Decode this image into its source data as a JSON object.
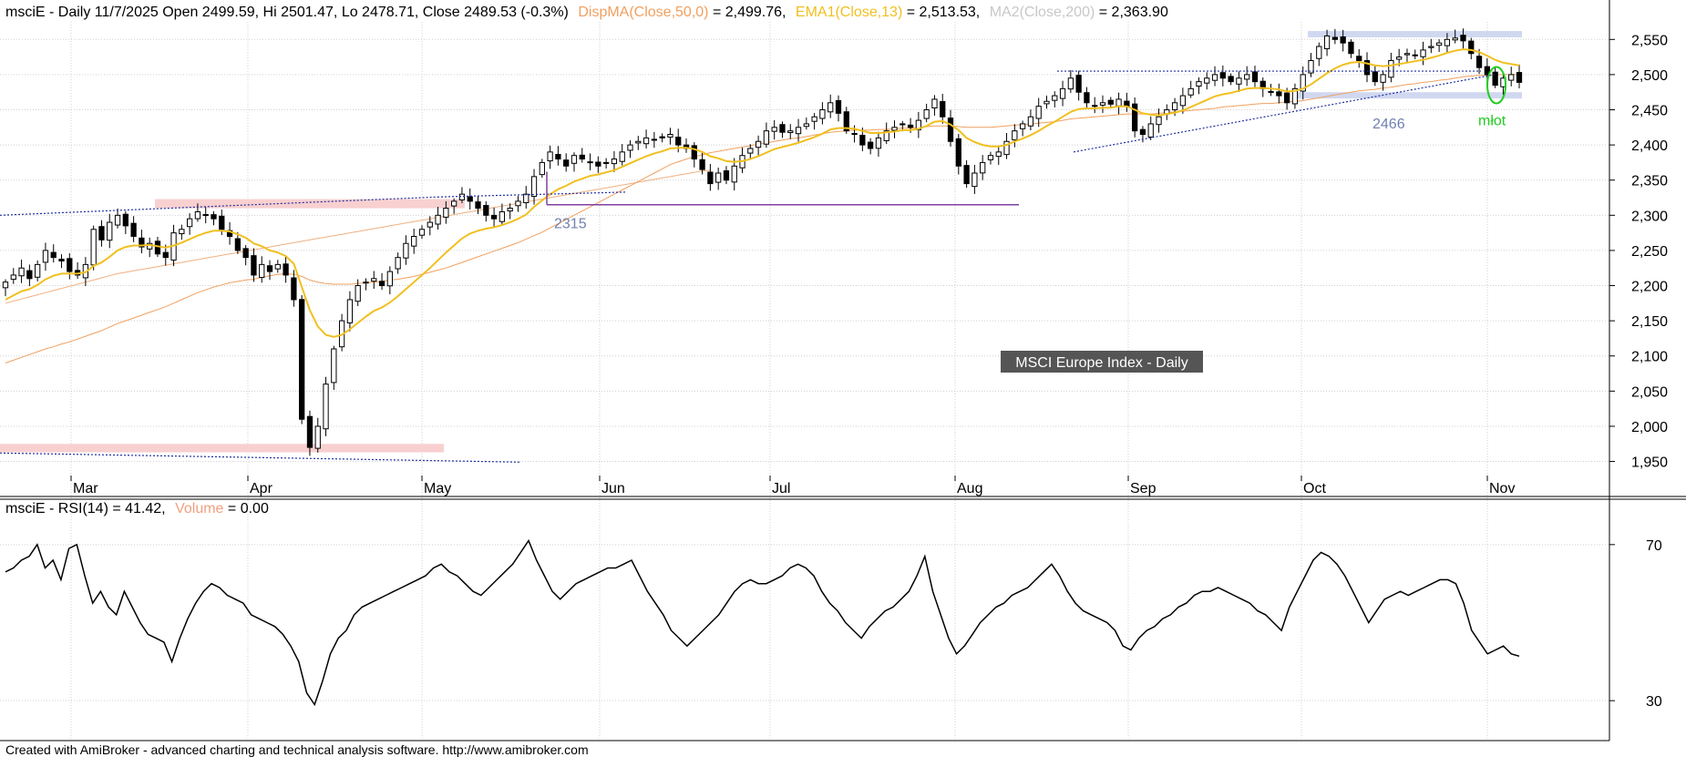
{
  "header": {
    "symbol": "msciE",
    "main": "msciE - Daily 11/7/2025 Open 2499.59, Hi 2501.47, Lo 2478.71, Close 2489.53 (-0.3%)",
    "ma50_label": "DispMA(Close,50,0)",
    "ma50_value": " = 2,499.76,",
    "ema13_label": "EMA1(Close,13)",
    "ema13_value": " = 2,513.53,",
    "ma200_label": "MA2(Close,200)",
    "ma200_value": " = 2,363.90"
  },
  "rsi_header": {
    "main": "msciE - RSI(14) = 41.42,",
    "volume_label": "Volume",
    "volume_value": " = 0.00"
  },
  "footer": "Created with AmiBroker - advanced charting and technical analysis software. http://www.amibroker.com",
  "colors": {
    "ema13": "#f0c020",
    "ma50": "#f0a060",
    "ma200": "#c8c8c8",
    "grid": "#d0d0d0",
    "annotation_blue": "#7080b0",
    "annotation_green": "#22cc22",
    "support_band": "#f8d0d0",
    "resistance_band": "#d0d8f0",
    "purple_line": "#8040a0"
  },
  "chart_data": [
    {
      "type": "candlestick",
      "title": "MSCI Europe Index - Daily",
      "ylim": [
        1930,
        2575
      ],
      "y_ticks": [
        "2,550",
        "2,500",
        "2,450",
        "2,400",
        "2,350",
        "2,300",
        "2,250",
        "2,200",
        "2,150",
        "2,100",
        "2,050",
        "2,000",
        "1,950"
      ],
      "months": [
        "Mar",
        "Apr",
        "May",
        "Jun",
        "Jul",
        "Aug",
        "Sep",
        "Oct",
        "Nov"
      ],
      "annotations": [
        {
          "text": "2315",
          "value": 2315
        },
        {
          "text": "2466",
          "value": 2466
        },
        {
          "text": "młot"
        }
      ],
      "close": [
        2205,
        2215,
        2225,
        2210,
        2230,
        2250,
        2240,
        2235,
        2220,
        2215,
        2230,
        2280,
        2265,
        2290,
        2300,
        2285,
        2270,
        2255,
        2260,
        2245,
        2240,
        2275,
        2280,
        2295,
        2305,
        2300,
        2295,
        2280,
        2270,
        2250,
        2240,
        2215,
        2230,
        2220,
        2230,
        2215,
        2180,
        2010,
        1970,
        2000,
        2060,
        2110,
        2150,
        2180,
        2200,
        2205,
        2210,
        2200,
        2220,
        2240,
        2260,
        2270,
        2280,
        2290,
        2300,
        2310,
        2320,
        2330,
        2320,
        2310,
        2300,
        2295,
        2305,
        2310,
        2320,
        2330,
        2355,
        2375,
        2390,
        2380,
        2370,
        2385,
        2380,
        2375,
        2370,
        2375,
        2380,
        2390,
        2400,
        2405,
        2410,
        2408,
        2410,
        2415,
        2400,
        2395,
        2380,
        2365,
        2345,
        2360,
        2350,
        2370,
        2385,
        2395,
        2405,
        2420,
        2425,
        2418,
        2420,
        2425,
        2430,
        2440,
        2450,
        2460,
        2445,
        2420,
        2415,
        2400,
        2395,
        2410,
        2420,
        2425,
        2430,
        2425,
        2435,
        2450,
        2465,
        2440,
        2405,
        2370,
        2345,
        2360,
        2375,
        2385,
        2390,
        2405,
        2420,
        2430,
        2440,
        2455,
        2462,
        2470,
        2480,
        2495,
        2475,
        2460,
        2455,
        2460,
        2458,
        2465,
        2455,
        2420,
        2415,
        2430,
        2440,
        2450,
        2460,
        2470,
        2480,
        2490,
        2495,
        2500,
        2495,
        2490,
        2495,
        2500,
        2490,
        2480,
        2475,
        2470,
        2460,
        2480,
        2500,
        2520,
        2540,
        2555,
        2550,
        2545,
        2530,
        2520,
        2500,
        2490,
        2500,
        2520,
        2525,
        2530,
        2528,
        2535,
        2540,
        2545,
        2550,
        2552,
        2548,
        2530,
        2510,
        2500,
        2485,
        2495,
        2500,
        2489
      ],
      "ema13": [
        2180,
        2186,
        2192,
        2195,
        2201,
        2209,
        2214,
        2217,
        2217,
        2217,
        2219,
        2228,
        2233,
        2241,
        2250,
        2255,
        2257,
        2257,
        2258,
        2256,
        2254,
        2257,
        2261,
        2266,
        2271,
        2275,
        2278,
        2278,
        2277,
        2273,
        2268,
        2260,
        2256,
        2250,
        2247,
        2242,
        2231,
        2198,
        2165,
        2142,
        2130,
        2127,
        2130,
        2138,
        2147,
        2156,
        2164,
        2169,
        2176,
        2185,
        2195,
        2205,
        2215,
        2225,
        2236,
        2247,
        2257,
        2267,
        2274,
        2278,
        2281,
        2283,
        2286,
        2290,
        2295,
        2301,
        2312,
        2321,
        2330,
        2337,
        2342,
        2348,
        2352,
        2356,
        2358,
        2361,
        2364,
        2369,
        2374,
        2379,
        2384,
        2388,
        2391,
        2395,
        2396,
        2396,
        2394,
        2390,
        2384,
        2381,
        2377,
        2376,
        2377,
        2380,
        2384,
        2389,
        2394,
        2397,
        2400,
        2403,
        2407,
        2411,
        2416,
        2422,
        2424,
        2424,
        2423,
        2420,
        2417,
        2417,
        2418,
        2419,
        2421,
        2421,
        2423,
        2427,
        2433,
        2434,
        2429,
        2421,
        2410,
        2404,
        2400,
        2398,
        2398,
        2400,
        2405,
        2409,
        2414,
        2420,
        2427,
        2433,
        2440,
        2447,
        2451,
        2452,
        2452,
        2453,
        2453,
        2455,
        2455,
        2450,
        2445,
        2443,
        2442,
        2444,
        2446,
        2449,
        2454,
        2459,
        2464,
        2469,
        2472,
        2474,
        2477,
        2480,
        2481,
        2481,
        2480,
        2479,
        2476,
        2477,
        2480,
        2486,
        2494,
        2502,
        2509,
        2514,
        2517,
        2518,
        2516,
        2513,
        2512,
        2513,
        2515,
        2517,
        2519,
        2521,
        2524,
        2527,
        2531,
        2534,
        2536,
        2535,
        2532,
        2527,
        2521,
        2517,
        2515,
        2513
      ],
      "ma50": [
        2090,
        2094,
        2098,
        2102,
        2106,
        2110,
        2113,
        2117,
        2120,
        2124,
        2128,
        2132,
        2136,
        2141,
        2146,
        2150,
        2154,
        2158,
        2162,
        2166,
        2170,
        2175,
        2180,
        2185,
        2190,
        2194,
        2198,
        2201,
        2204,
        2206,
        2208,
        2209,
        2212,
        2214,
        2216,
        2217,
        2216,
        2213,
        2208,
        2205,
        2203,
        2202,
        2202,
        2202,
        2203,
        2204,
        2205,
        2206,
        2208,
        2209,
        2211,
        2213,
        2216,
        2219,
        2222,
        2225,
        2229,
        2233,
        2237,
        2241,
        2245,
        2249,
        2253,
        2257,
        2261,
        2266,
        2271,
        2276,
        2282,
        2288,
        2294,
        2300,
        2306,
        2312,
        2318,
        2324,
        2330,
        2336,
        2342,
        2348,
        2354,
        2360,
        2366,
        2372,
        2376,
        2380,
        2383,
        2386,
        2389,
        2391,
        2393,
        2395,
        2397,
        2399,
        2401,
        2403,
        2405,
        2407,
        2409,
        2410,
        2412,
        2414,
        2416,
        2418,
        2419,
        2420,
        2421,
        2421,
        2421,
        2422,
        2422,
        2423,
        2424,
        2424,
        2425,
        2426,
        2427,
        2427,
        2427,
        2426,
        2425,
        2425,
        2425,
        2425,
        2426,
        2427,
        2428,
        2429,
        2430,
        2431,
        2432,
        2433,
        2435,
        2437,
        2438,
        2439,
        2440,
        2441,
        2442,
        2443,
        2444,
        2444,
        2444,
        2444,
        2445,
        2446,
        2447,
        2448,
        2449,
        2450,
        2451,
        2452,
        2454,
        2455,
        2456,
        2457,
        2458,
        2459,
        2459,
        2460,
        2461,
        2462,
        2463,
        2465,
        2467,
        2469,
        2471,
        2473,
        2475,
        2477,
        2478,
        2479,
        2481,
        2482,
        2484,
        2486,
        2487,
        2489,
        2490,
        2492,
        2493,
        2495,
        2497,
        2498,
        2499,
        2499,
        2500,
        2500,
        2500,
        2500
      ],
      "ma200_partial": [
        2175,
        2178,
        2181,
        2184,
        2187,
        2190,
        2193,
        2196,
        2199,
        2202,
        2205,
        2208,
        2211,
        2214,
        2217,
        2219,
        2221,
        2223,
        2225,
        2227,
        2229,
        2231,
        2233,
        2235,
        2237,
        2239,
        2241,
        2243,
        2245,
        2247,
        2249,
        2251,
        2253,
        2255,
        2257,
        2259,
        2261,
        2263,
        2265,
        2267,
        2269,
        2271,
        2273,
        2275,
        2277,
        2279,
        2281,
        2283,
        2285,
        2287,
        2289,
        2291,
        2293,
        2295,
        2297,
        2299,
        2301,
        2303,
        2305,
        2307,
        2309,
        2311,
        2313,
        2315,
        2317,
        2319,
        2321,
        2323,
        2325,
        2327,
        2329,
        2331,
        2333,
        2335,
        2337,
        2339,
        2341,
        2343,
        2345,
        2347,
        2349,
        2351,
        2353,
        2355,
        2357,
        2359,
        2361,
        2363,
        2364
      ]
    },
    {
      "type": "line",
      "title": "",
      "ylim": [
        20,
        80
      ],
      "y_ticks": [
        "70",
        "30"
      ],
      "rsi": [
        63,
        64,
        66,
        67,
        70,
        64,
        66,
        61,
        69,
        70,
        62,
        55,
        58,
        54,
        52,
        58,
        54,
        50,
        47,
        46,
        45,
        40,
        46,
        51,
        55,
        58,
        60,
        59,
        57,
        56,
        55,
        52,
        51,
        50,
        49,
        47,
        44,
        40,
        32,
        29,
        35,
        42,
        46,
        48,
        52,
        54,
        55,
        56,
        57,
        58,
        59,
        60,
        61,
        62,
        64,
        65,
        63,
        62,
        60,
        58,
        57,
        59,
        61,
        63,
        65,
        68,
        71,
        66,
        62,
        58,
        56,
        58,
        60,
        61,
        62,
        63,
        64,
        64,
        65,
        66,
        62,
        58,
        55,
        52,
        48,
        46,
        44,
        46,
        48,
        50,
        52,
        55,
        58,
        60,
        61,
        60,
        60,
        61,
        62,
        64,
        65,
        64,
        62,
        58,
        55,
        53,
        50,
        48,
        46,
        49,
        51,
        53,
        54,
        56,
        58,
        62,
        67,
        58,
        52,
        46,
        42,
        44,
        47,
        50,
        52,
        54,
        55,
        57,
        58,
        59,
        61,
        63,
        65,
        62,
        58,
        55,
        53,
        52,
        51,
        50,
        48,
        44,
        43,
        46,
        48,
        49,
        51,
        52,
        54,
        55,
        57,
        58,
        58,
        59,
        58,
        57,
        56,
        55,
        53,
        52,
        50,
        48,
        54,
        58,
        62,
        66,
        68,
        67,
        65,
        62,
        58,
        54,
        50,
        53,
        56,
        57,
        58,
        57,
        58,
        59,
        60,
        61,
        61,
        60,
        55,
        48,
        45,
        42,
        43,
        44,
        42,
        41.42
      ]
    }
  ]
}
